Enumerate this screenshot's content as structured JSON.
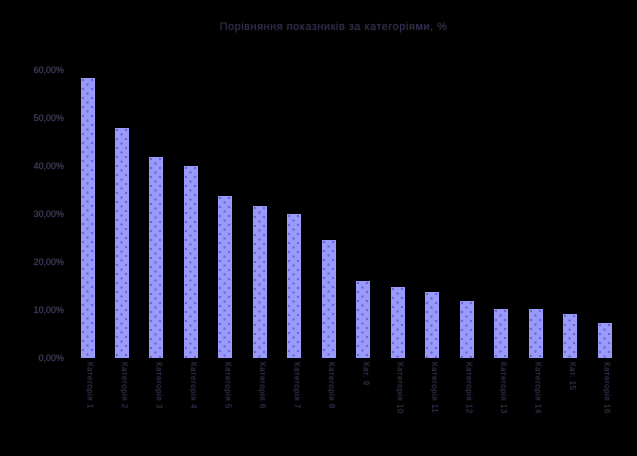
{
  "chart_data": {
    "type": "bar",
    "title": "Порівняння показників за категоріями, %",
    "categories": [
      "Категорія 1",
      "Категорія 2",
      "Категорія 3",
      "Категорія 4",
      "Категорія 5",
      "Категорія 6",
      "Категорія 7",
      "Категорія 8",
      "Кат. 9",
      "Категорія 10",
      "Категорія 11",
      "Категорія 12",
      "Категорія 13",
      "Категорія 14",
      "Кат. 15",
      "Категорія 16"
    ],
    "values": [
      58.4,
      47.9,
      42.0,
      40.0,
      33.7,
      31.6,
      30.1,
      24.7,
      16.1,
      14.9,
      13.8,
      11.9,
      10.3,
      10.2,
      9.1,
      7.2
    ],
    "yticks": [
      "60,00%",
      "50,00%",
      "40,00%",
      "30,00%",
      "20,00%",
      "10,00%",
      "0,00%"
    ],
    "ylim": [
      0,
      60
    ],
    "xlabel": "",
    "ylabel": "",
    "legend": "none",
    "grid": "off",
    "background": "#000000",
    "bar_color": "#9999FF",
    "bar_dot_color": "#6666CC",
    "text_color": "#32325A"
  }
}
